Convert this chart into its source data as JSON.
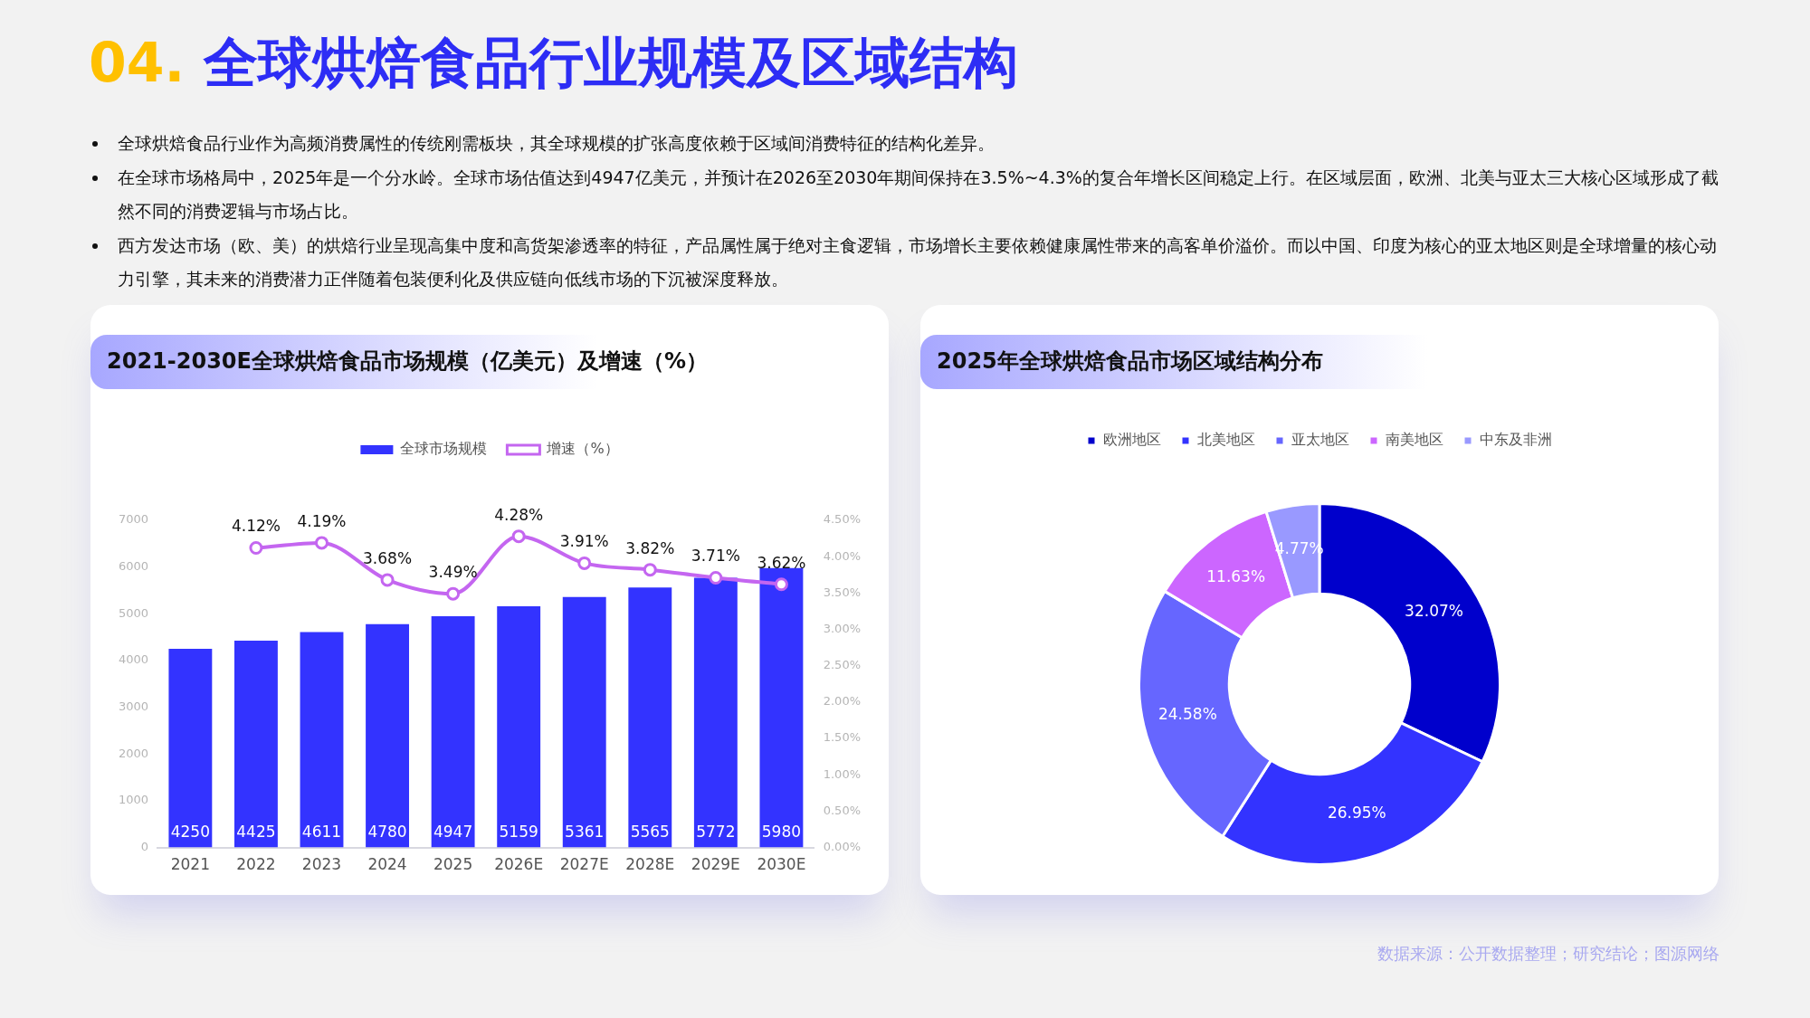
{
  "chart_data": [
    {
      "type": "other",
      "title": "04. 全球烘焙食品行业规模及区域结构",
      "annotations": [
        "全球烘焙食品行业作为高频消费属性的传统刚需板块，其全球规模的扩张高度依赖于区域间消费特征的结构化差异。",
        "在全球市场格局中，2025年是一个分水岭。全球市场估值达到4947亿美元，并预计在2026至2030年期间保持在3.5%~4.3%的复合年增长区间稳定上行。在区域层面，欧洲、北美与亚太三大核心区域形成了截然不同的消费逻辑与市场占比。",
        "西方发达市场（欧、美）的烘焙行业呈现高集中度和高货架渗透率的特征，产品属性属于绝对主食逻辑，市场增长主要依赖健康属性带来的高客单价溢价。而以中国、印度为核心的亚太地区则是全球增量的核心动力引擎，其未来的消费潜力正伴随着包装便利化及供应链向低线市场的下沉被深度释放。",
        "数据来源：公开数据整理；研究结论；图源网络"
      ]
    },
    {
      "type": "bar",
      "title": "2021-2030E全球烘焙食品市场规模（亿美元）及增速（%）",
      "categories": [
        "2021",
        "2022",
        "2023",
        "2024",
        "2025",
        "2026E",
        "2027E",
        "2028E",
        "2029E",
        "2030E"
      ],
      "series": [
        {
          "name": "全球市场规模",
          "type": "bar",
          "color": "#3333ff",
          "values": [
            4250,
            4425,
            4611,
            4780,
            4947,
            5159,
            5361,
            5565,
            5772,
            5980
          ],
          "value_labels": [
            "4250",
            "4425",
            "4611",
            "4780",
            "4947",
            "5159",
            "5361",
            "5565",
            "5772",
            "5980"
          ]
        },
        {
          "name": "增速（%）",
          "type": "line",
          "axis": "y2",
          "color": "#c466f0",
          "values": [
            null,
            4.12,
            4.19,
            3.68,
            3.49,
            4.28,
            3.91,
            3.82,
            3.71,
            3.62
          ],
          "value_labels": [
            null,
            "4.12%",
            "4.19%",
            "3.68%",
            "3.49%",
            "4.28%",
            "3.91%",
            "3.82%",
            "3.71%",
            "3.62%"
          ]
        }
      ],
      "ylim": [
        0,
        7000
      ],
      "yticks": [
        0,
        1000,
        2000,
        3000,
        4000,
        5000,
        6000,
        7000
      ],
      "y2lim": [
        0,
        4.5
      ],
      "y2ticks": [
        {
          "value": 0,
          "label": "0.00%"
        },
        {
          "value": 0.5,
          "label": "0.50%"
        },
        {
          "value": 1,
          "label": "1.00%"
        },
        {
          "value": 1.5,
          "label": "1.50%"
        },
        {
          "value": 2,
          "label": "2.00%"
        },
        {
          "value": 2.5,
          "label": "2.50%"
        },
        {
          "value": 3,
          "label": "3.00%"
        },
        {
          "value": 3.5,
          "label": "3.50%"
        },
        {
          "value": 4,
          "label": "4.00%"
        },
        {
          "value": 4.5,
          "label": "4.50%"
        }
      ],
      "marker": "circle",
      "legend": "top",
      "grid": false
    },
    {
      "type": "donut",
      "title": "2025年全球烘焙食品市场区域结构分布",
      "categories": [
        "欧洲地区",
        "北美地区",
        "亚太地区",
        "南美地区",
        "中东及非洲"
      ],
      "values": [
        32.07,
        26.95,
        24.58,
        11.63,
        4.77
      ],
      "colors": [
        "#0000cc",
        "#3333ff",
        "#6666ff",
        "#cc66ff",
        "#9999ff"
      ],
      "value_labels": [
        "32.07%",
        "26.95%",
        "24.58%",
        "11.63%",
        "4.77%"
      ],
      "legend": "top"
    }
  ]
}
